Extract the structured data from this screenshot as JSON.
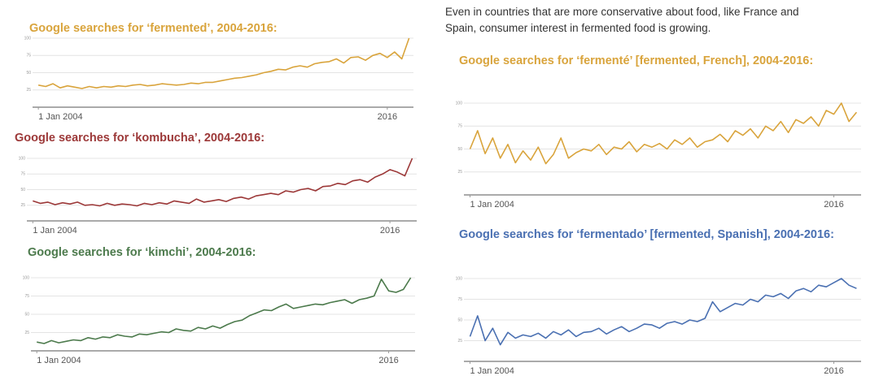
{
  "note": "Even in countries that are more conservative about food, like France and Spain, consumer interest in fermented food is growing.",
  "chart_data": [
    {
      "type": "line",
      "title": "Google searches for ‘fermented’, 2004-2016:",
      "color": "#d9a43c",
      "x": [
        2004,
        2004.25,
        2004.5,
        2004.75,
        2005,
        2005.25,
        2005.5,
        2005.75,
        2006,
        2006.25,
        2006.5,
        2006.75,
        2007,
        2007.25,
        2007.5,
        2007.75,
        2008,
        2008.25,
        2008.5,
        2008.75,
        2009,
        2009.25,
        2009.5,
        2009.75,
        2010,
        2010.25,
        2010.5,
        2010.75,
        2011,
        2011.25,
        2011.5,
        2011.75,
        2012,
        2012.25,
        2012.5,
        2012.75,
        2013,
        2013.25,
        2013.5,
        2013.75,
        2014,
        2014.25,
        2014.5,
        2014.75,
        2015,
        2015.25,
        2015.5,
        2015.75,
        2016,
        2016.25,
        2016.5,
        2016.75
      ],
      "values": [
        32,
        30,
        34,
        28,
        31,
        29,
        27,
        30,
        28,
        30,
        29,
        31,
        30,
        32,
        33,
        31,
        32,
        34,
        33,
        32,
        33,
        35,
        34,
        36,
        36,
        38,
        40,
        42,
        43,
        45,
        47,
        50,
        52,
        55,
        54,
        58,
        60,
        58,
        63,
        65,
        66,
        70,
        64,
        72,
        73,
        68,
        75,
        78,
        72,
        80,
        70,
        100
      ],
      "xlim": [
        2003.8,
        2016.9
      ],
      "xticks": [
        {
          "value": 2004,
          "label": "1 Jan 2004"
        },
        2016
      ],
      "ylim": [
        0,
        100
      ],
      "yticks": [
        25,
        50,
        75,
        100
      ],
      "grid": true
    },
    {
      "type": "line",
      "title": "Google searches for ‘kombucha’, 2004-2016:",
      "color": "#9c3838",
      "x": [
        2004,
        2004.25,
        2004.5,
        2004.75,
        2005,
        2005.25,
        2005.5,
        2005.75,
        2006,
        2006.25,
        2006.5,
        2006.75,
        2007,
        2007.25,
        2007.5,
        2007.75,
        2008,
        2008.25,
        2008.5,
        2008.75,
        2009,
        2009.25,
        2009.5,
        2009.75,
        2010,
        2010.25,
        2010.5,
        2010.75,
        2011,
        2011.25,
        2011.5,
        2011.75,
        2012,
        2012.25,
        2012.5,
        2012.75,
        2013,
        2013.25,
        2013.5,
        2013.75,
        2014,
        2014.25,
        2014.5,
        2014.75,
        2015,
        2015.25,
        2015.5,
        2015.75,
        2016,
        2016.25,
        2016.5,
        2016.75
      ],
      "values": [
        32,
        28,
        30,
        26,
        29,
        27,
        30,
        25,
        26,
        24,
        28,
        25,
        27,
        26,
        24,
        28,
        26,
        29,
        27,
        32,
        30,
        28,
        35,
        30,
        32,
        34,
        31,
        36,
        38,
        35,
        40,
        42,
        44,
        42,
        48,
        46,
        50,
        52,
        48,
        55,
        56,
        60,
        58,
        64,
        66,
        62,
        70,
        75,
        82,
        78,
        72,
        100
      ],
      "xlim": [
        2003.8,
        2016.9
      ],
      "xticks": [
        {
          "value": 2004,
          "label": "1 Jan 2004"
        },
        2016
      ],
      "ylim": [
        0,
        100
      ],
      "yticks": [
        25,
        50,
        75,
        100
      ],
      "grid": true
    },
    {
      "type": "line",
      "title": "Google searches for ‘kimchi’, 2004-2016:",
      "color": "#4c7a4c",
      "x": [
        2004,
        2004.25,
        2004.5,
        2004.75,
        2005,
        2005.25,
        2005.5,
        2005.75,
        2006,
        2006.25,
        2006.5,
        2006.75,
        2007,
        2007.25,
        2007.5,
        2007.75,
        2008,
        2008.25,
        2008.5,
        2008.75,
        2009,
        2009.25,
        2009.5,
        2009.75,
        2010,
        2010.25,
        2010.5,
        2010.75,
        2011,
        2011.25,
        2011.5,
        2011.75,
        2012,
        2012.25,
        2012.5,
        2012.75,
        2013,
        2013.25,
        2013.5,
        2013.75,
        2014,
        2014.25,
        2014.5,
        2014.75,
        2015,
        2015.25,
        2015.5,
        2015.75,
        2016,
        2016.25,
        2016.5,
        2016.75
      ],
      "values": [
        12,
        10,
        14,
        11,
        13,
        15,
        14,
        18,
        16,
        19,
        18,
        22,
        20,
        19,
        23,
        22,
        24,
        26,
        25,
        30,
        28,
        27,
        32,
        30,
        34,
        31,
        36,
        40,
        42,
        48,
        52,
        56,
        55,
        60,
        64,
        58,
        60,
        62,
        64,
        63,
        66,
        68,
        70,
        65,
        70,
        72,
        75,
        98,
        82,
        80,
        84,
        100
      ],
      "xlim": [
        2003.8,
        2016.9
      ],
      "xticks": [
        {
          "value": 2004,
          "label": "1 Jan 2004"
        },
        2016
      ],
      "ylim": [
        0,
        100
      ],
      "yticks": [
        25,
        50,
        75,
        100
      ],
      "grid": true
    },
    {
      "type": "line",
      "title": "Google searches for ‘fermenté’ [fermented, French], 2004-2016:",
      "color": "#d9a43c",
      "x": [
        2004,
        2004.25,
        2004.5,
        2004.75,
        2005,
        2005.25,
        2005.5,
        2005.75,
        2006,
        2006.25,
        2006.5,
        2006.75,
        2007,
        2007.25,
        2007.5,
        2007.75,
        2008,
        2008.25,
        2008.5,
        2008.75,
        2009,
        2009.25,
        2009.5,
        2009.75,
        2010,
        2010.25,
        2010.5,
        2010.75,
        2011,
        2011.25,
        2011.5,
        2011.75,
        2012,
        2012.25,
        2012.5,
        2012.75,
        2013,
        2013.25,
        2013.5,
        2013.75,
        2014,
        2014.25,
        2014.5,
        2014.75,
        2015,
        2015.25,
        2015.5,
        2015.75,
        2016,
        2016.25,
        2016.5,
        2016.75
      ],
      "values": [
        50,
        70,
        45,
        62,
        40,
        55,
        35,
        48,
        38,
        52,
        34,
        44,
        62,
        40,
        46,
        50,
        48,
        55,
        44,
        52,
        50,
        58,
        47,
        55,
        52,
        56,
        50,
        60,
        55,
        62,
        52,
        58,
        60,
        66,
        58,
        70,
        65,
        72,
        62,
        75,
        70,
        80,
        68,
        82,
        78,
        85,
        75,
        92,
        88,
        100,
        80,
        90
      ],
      "xlim": [
        2003.8,
        2016.9
      ],
      "xticks": [
        {
          "value": 2004,
          "label": "1 Jan 2004"
        },
        2016
      ],
      "ylim": [
        0,
        100
      ],
      "yticks": [
        25,
        50,
        75,
        100
      ],
      "grid": true
    },
    {
      "type": "line",
      "title": "Google searches for ‘fermentado’ [fermented, Spanish], 2004-2016:",
      "color": "#4a70b2",
      "x": [
        2004,
        2004.25,
        2004.5,
        2004.75,
        2005,
        2005.25,
        2005.5,
        2005.75,
        2006,
        2006.25,
        2006.5,
        2006.75,
        2007,
        2007.25,
        2007.5,
        2007.75,
        2008,
        2008.25,
        2008.5,
        2008.75,
        2009,
        2009.25,
        2009.5,
        2009.75,
        2010,
        2010.25,
        2010.5,
        2010.75,
        2011,
        2011.25,
        2011.5,
        2011.75,
        2012,
        2012.25,
        2012.5,
        2012.75,
        2013,
        2013.25,
        2013.5,
        2013.75,
        2014,
        2014.25,
        2014.5,
        2014.75,
        2015,
        2015.25,
        2015.5,
        2015.75,
        2016,
        2016.25,
        2016.5,
        2016.75
      ],
      "values": [
        30,
        55,
        25,
        40,
        20,
        35,
        28,
        32,
        30,
        34,
        28,
        36,
        32,
        38,
        30,
        35,
        36,
        40,
        33,
        38,
        42,
        36,
        40,
        45,
        44,
        40,
        46,
        48,
        45,
        50,
        48,
        52,
        72,
        60,
        65,
        70,
        68,
        75,
        72,
        80,
        78,
        82,
        76,
        85,
        88,
        84,
        92,
        90,
        95,
        100,
        92,
        88
      ],
      "xlim": [
        2003.8,
        2016.9
      ],
      "xticks": [
        {
          "value": 2004,
          "label": "1 Jan 2004"
        },
        2016
      ],
      "ylim": [
        0,
        100
      ],
      "yticks": [
        25,
        50,
        75,
        100
      ],
      "grid": true
    }
  ]
}
